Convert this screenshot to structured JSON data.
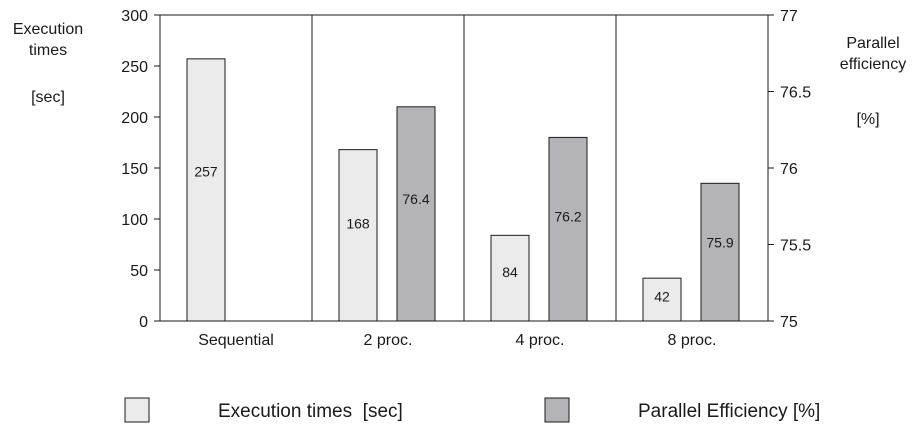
{
  "chart_data": {
    "type": "bar",
    "categories": [
      "Sequential",
      "2 proc.",
      "4 proc.",
      "8 proc."
    ],
    "series": [
      {
        "name": "Execution times  [sec]",
        "axis": "left",
        "values": [
          257,
          168,
          84,
          42
        ],
        "labels": [
          "257",
          "168",
          "84",
          "42"
        ],
        "color": "#ebebeb"
      },
      {
        "name": "Parallel Efficiency [%]",
        "axis": "right",
        "values": [
          null,
          76.4,
          76.2,
          75.9
        ],
        "labels": [
          "",
          "76.4",
          "76.2",
          "75.9"
        ],
        "color": "#b4b4b8"
      }
    ],
    "y_left": {
      "label_lines": [
        "Execution",
        "times",
        "[sec]"
      ],
      "ylim": [
        0,
        300
      ],
      "ticks": [
        "0",
        "50",
        "100",
        "150",
        "200",
        "250",
        "300"
      ]
    },
    "y_right": {
      "label_lines": [
        "Parallel",
        "efficiency",
        "[%]"
      ],
      "ylim": [
        75,
        77
      ],
      "ticks": [
        "75",
        "75.5",
        "76",
        "76.5",
        "77"
      ]
    },
    "grid": false,
    "category_separators": true,
    "legend_position": "bottom"
  }
}
